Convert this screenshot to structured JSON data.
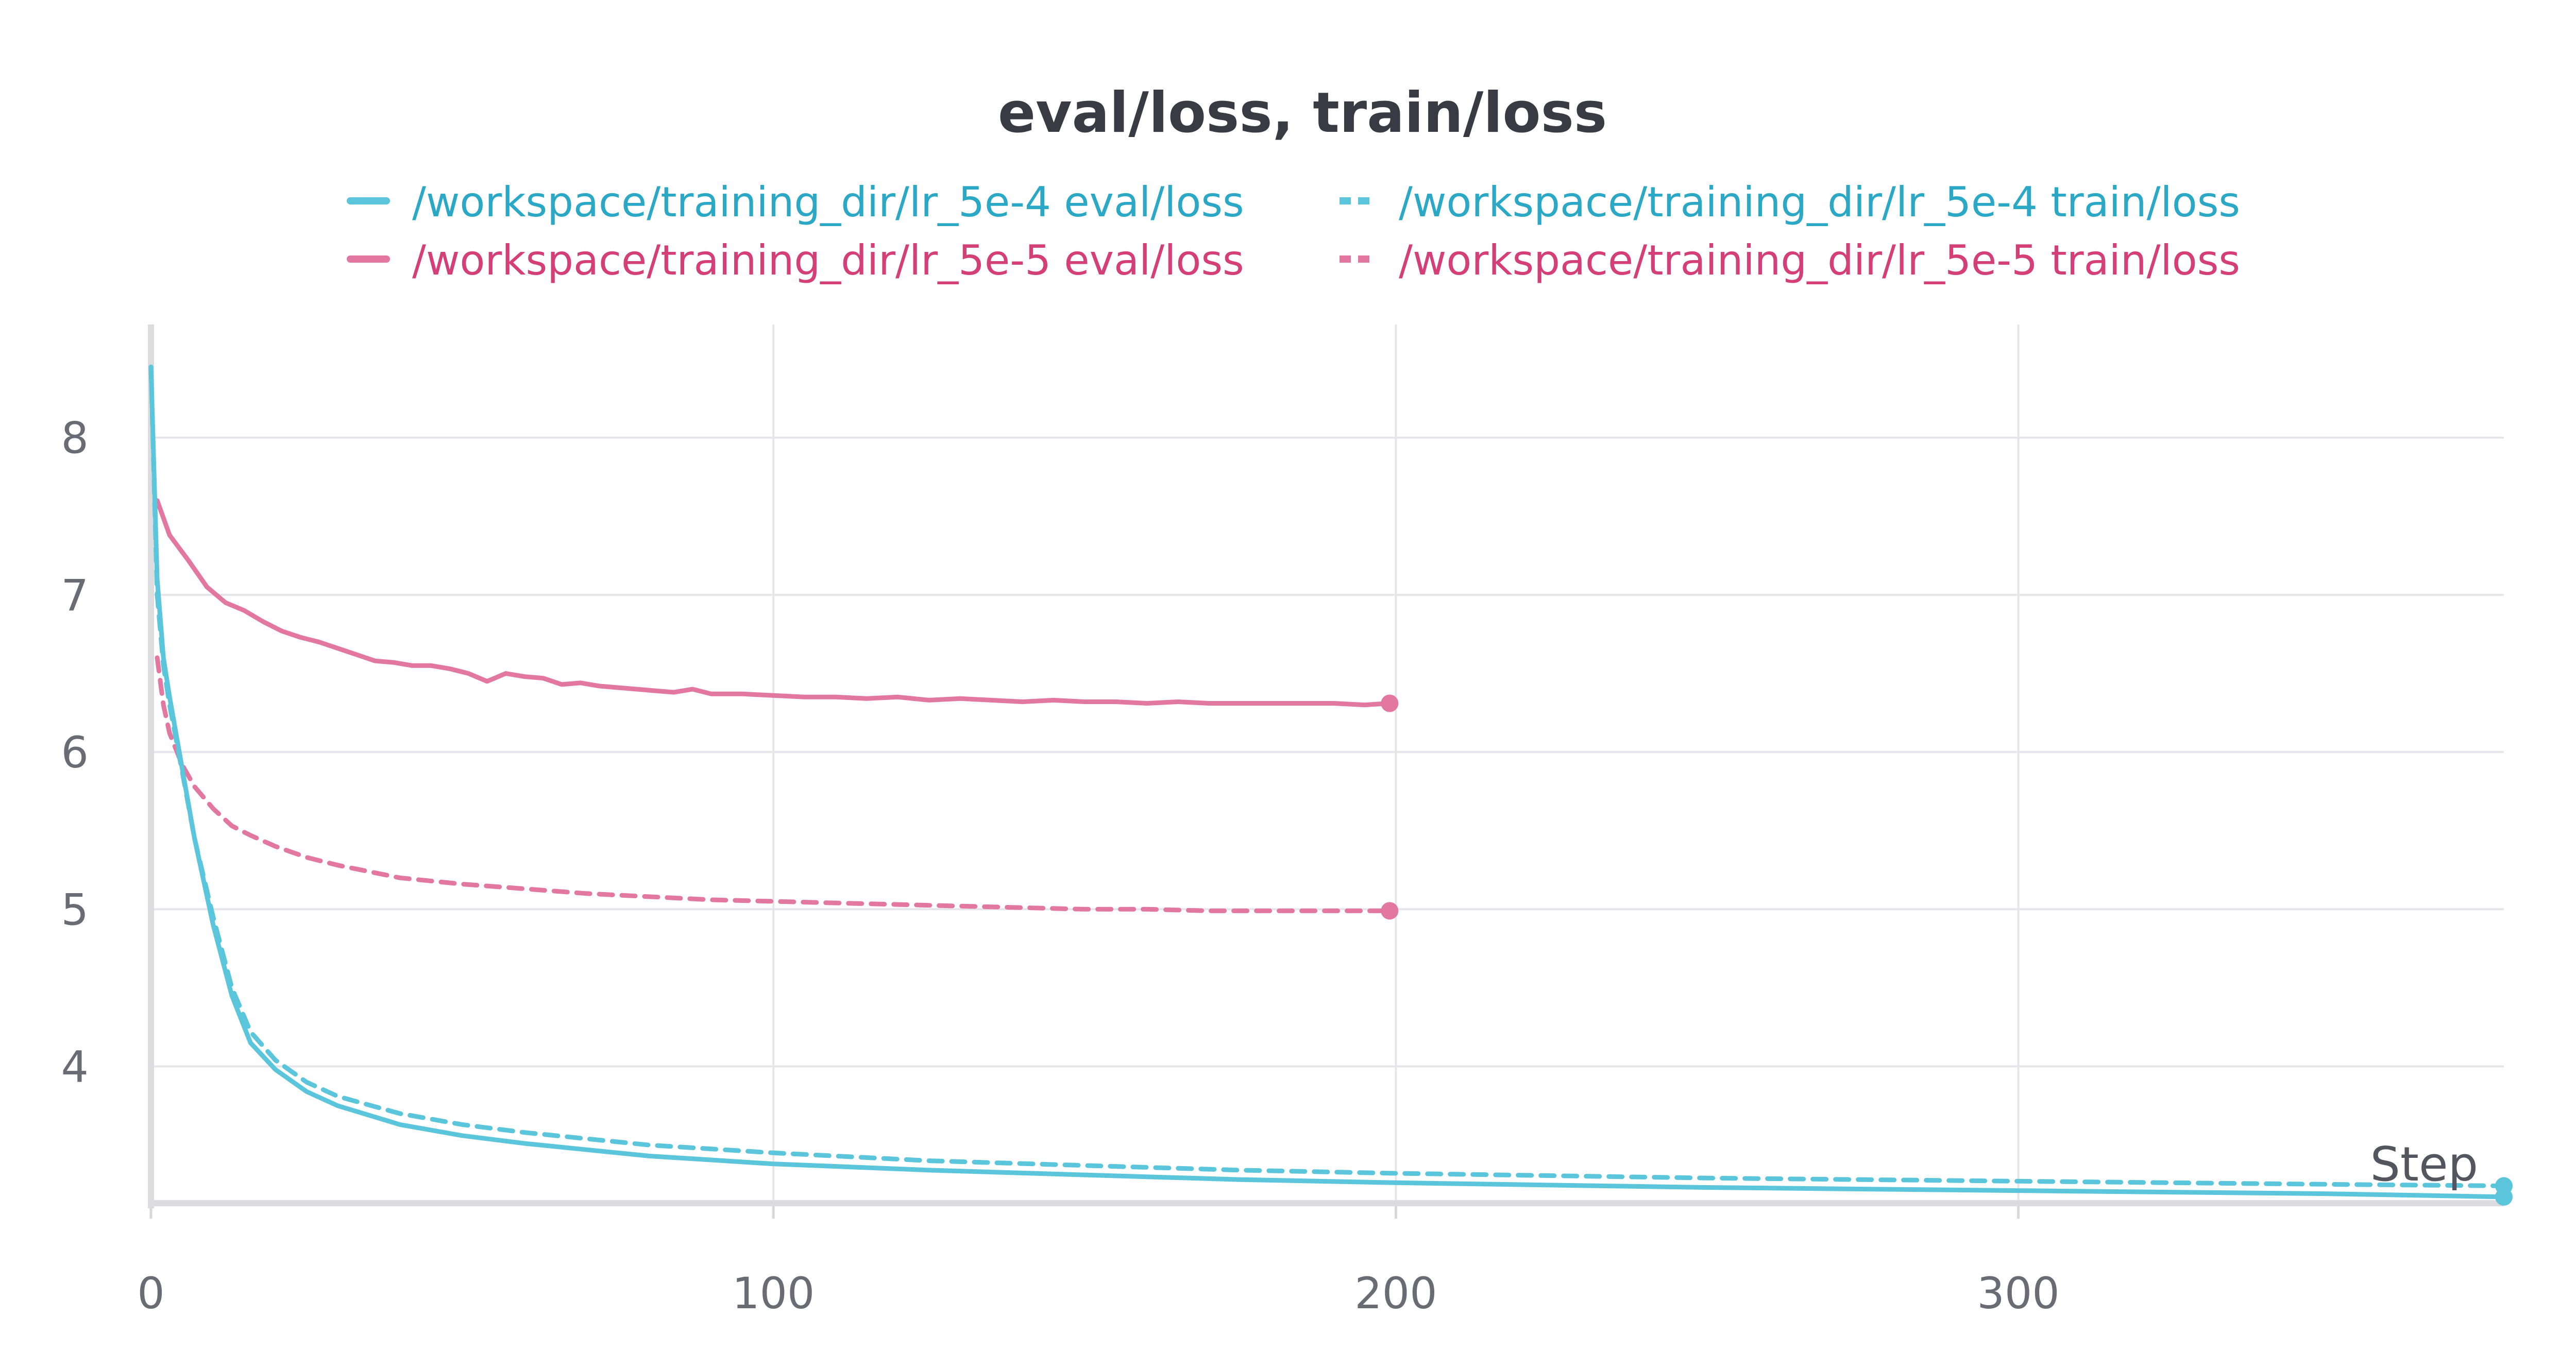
{
  "chart_data": {
    "type": "line",
    "title": "eval/loss, train/loss",
    "xlabel": "Step",
    "ylabel": "",
    "xlim": [
      0,
      378
    ],
    "ylim": [
      3.13,
      8.72
    ],
    "x_ticks": [
      0,
      100,
      200,
      300
    ],
    "y_ticks": [
      4,
      5,
      6,
      7,
      8
    ],
    "grid": true,
    "legend_position": "top",
    "series": [
      {
        "name": "/workspace/training_dir/lr_5e-4 eval/loss",
        "color": "#5bc5db",
        "dash": "solid",
        "x": [
          0,
          1,
          2,
          3,
          5,
          7,
          10,
          13,
          16,
          20,
          25,
          30,
          40,
          50,
          60,
          70,
          80,
          100,
          125,
          150,
          175,
          200,
          250,
          300,
          350,
          378
        ],
        "y": [
          8.45,
          7.1,
          6.6,
          6.35,
          5.9,
          5.45,
          4.9,
          4.45,
          4.15,
          3.98,
          3.84,
          3.75,
          3.63,
          3.56,
          3.51,
          3.47,
          3.43,
          3.38,
          3.34,
          3.31,
          3.28,
          3.26,
          3.23,
          3.21,
          3.19,
          3.17
        ]
      },
      {
        "name": "/workspace/training_dir/lr_5e-4 train/loss",
        "color": "#5bc5db",
        "dash": "dashed",
        "x": [
          0,
          1,
          2,
          3,
          5,
          7,
          10,
          13,
          16,
          20,
          25,
          30,
          40,
          50,
          60,
          70,
          80,
          100,
          125,
          150,
          175,
          200,
          250,
          300,
          350,
          378
        ],
        "y": [
          8.45,
          7.0,
          6.55,
          6.3,
          5.88,
          5.45,
          4.95,
          4.5,
          4.22,
          4.04,
          3.9,
          3.81,
          3.7,
          3.63,
          3.58,
          3.54,
          3.5,
          3.45,
          3.4,
          3.37,
          3.34,
          3.32,
          3.29,
          3.27,
          3.25,
          3.24
        ]
      },
      {
        "name": "/workspace/training_dir/lr_5e-5 eval/loss",
        "color": "#e2779f",
        "dash": "solid",
        "x": [
          1,
          3,
          6,
          9,
          12,
          15,
          18,
          21,
          24,
          27,
          30,
          33,
          36,
          39,
          42,
          45,
          48,
          51,
          54,
          57,
          60,
          63,
          66,
          69,
          72,
          75,
          78,
          81,
          84,
          87,
          90,
          95,
          100,
          105,
          110,
          115,
          120,
          125,
          130,
          135,
          140,
          145,
          150,
          155,
          160,
          165,
          170,
          175,
          180,
          185,
          190,
          195,
          199
        ],
        "y": [
          7.6,
          7.38,
          7.22,
          7.05,
          6.95,
          6.9,
          6.83,
          6.77,
          6.73,
          6.7,
          6.66,
          6.62,
          6.58,
          6.57,
          6.55,
          6.55,
          6.53,
          6.5,
          6.45,
          6.5,
          6.48,
          6.47,
          6.43,
          6.44,
          6.42,
          6.41,
          6.4,
          6.39,
          6.38,
          6.4,
          6.37,
          6.37,
          6.36,
          6.35,
          6.35,
          6.34,
          6.35,
          6.33,
          6.34,
          6.33,
          6.32,
          6.33,
          6.32,
          6.32,
          6.31,
          6.32,
          6.31,
          6.31,
          6.31,
          6.31,
          6.31,
          6.3,
          6.31
        ]
      },
      {
        "name": "/workspace/training_dir/lr_5e-5 train/loss",
        "color": "#e2779f",
        "dash": "dashed",
        "x": [
          1,
          2,
          3,
          5,
          7,
          10,
          13,
          16,
          20,
          25,
          30,
          35,
          40,
          50,
          60,
          70,
          80,
          90,
          100,
          110,
          120,
          130,
          140,
          150,
          160,
          170,
          180,
          190,
          199
        ],
        "y": [
          6.6,
          6.3,
          6.12,
          5.92,
          5.78,
          5.64,
          5.53,
          5.47,
          5.4,
          5.33,
          5.28,
          5.24,
          5.2,
          5.16,
          5.13,
          5.1,
          5.08,
          5.06,
          5.05,
          5.04,
          5.03,
          5.02,
          5.01,
          5.0,
          5.0,
          4.99,
          4.99,
          4.99,
          4.99
        ]
      }
    ]
  }
}
